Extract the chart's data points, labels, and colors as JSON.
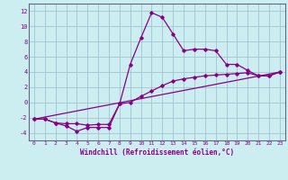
{
  "line1_x": [
    0,
    1,
    2,
    3,
    4,
    5,
    6,
    7,
    8,
    9,
    10,
    11,
    12,
    13,
    14,
    15,
    16,
    17,
    18,
    19,
    20,
    21,
    22,
    23
  ],
  "line1_y": [
    -2.2,
    -2.2,
    -2.7,
    -3.1,
    -3.8,
    -3.3,
    -3.3,
    -3.3,
    -0.2,
    5.0,
    8.5,
    11.8,
    11.2,
    9.0,
    6.8,
    7.0,
    7.0,
    6.8,
    5.0,
    5.0,
    4.2,
    3.5,
    3.5,
    4.0
  ],
  "line2_x": [
    0,
    1,
    2,
    3,
    4,
    5,
    6,
    7,
    8,
    9,
    10,
    11,
    12,
    13,
    14,
    15,
    16,
    17,
    18,
    19,
    20,
    21,
    22,
    23
  ],
  "line2_y": [
    -2.2,
    -2.2,
    -2.7,
    -2.8,
    -2.8,
    -3.0,
    -2.9,
    -2.9,
    -0.2,
    0.0,
    0.8,
    1.5,
    2.2,
    2.8,
    3.1,
    3.3,
    3.5,
    3.6,
    3.7,
    3.8,
    3.9,
    3.5,
    3.5,
    4.0
  ],
  "line3_x": [
    0,
    23
  ],
  "line3_y": [
    -2.2,
    4.0
  ],
  "line_color": "#880088",
  "bg_color": "#cceef0",
  "grid_color": "#99bbcc",
  "xlabel": "Windchill (Refroidissement éolien,°C)",
  "xlim": [
    -0.5,
    23.5
  ],
  "ylim": [
    -5,
    13
  ],
  "yticks": [
    -4,
    -2,
    0,
    2,
    4,
    6,
    8,
    10,
    12
  ],
  "xticks": [
    0,
    1,
    2,
    3,
    4,
    5,
    6,
    7,
    8,
    9,
    10,
    11,
    12,
    13,
    14,
    15,
    16,
    17,
    18,
    19,
    20,
    21,
    22,
    23
  ]
}
